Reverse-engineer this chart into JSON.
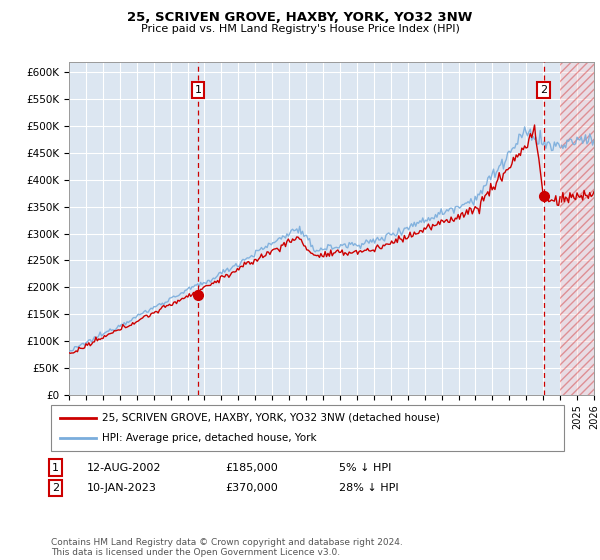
{
  "title": "25, SCRIVEN GROVE, HAXBY, YORK, YO32 3NW",
  "subtitle": "Price paid vs. HM Land Registry's House Price Index (HPI)",
  "ylabel_ticks": [
    "£0",
    "£50K",
    "£100K",
    "£150K",
    "£200K",
    "£250K",
    "£300K",
    "£350K",
    "£400K",
    "£450K",
    "£500K",
    "£550K",
    "£600K"
  ],
  "ytick_values": [
    0,
    50000,
    100000,
    150000,
    200000,
    250000,
    300000,
    350000,
    400000,
    450000,
    500000,
    550000,
    600000
  ],
  "xmin": 1995,
  "xmax": 2026,
  "ymin": 0,
  "ymax": 620000,
  "plot_bg": "#dce6f1",
  "line1_color": "#cc0000",
  "line2_color": "#7aaddc",
  "sale1_date": 2002.617,
  "sale1_price": 185000,
  "sale1_label": "1",
  "sale2_date": 2023.033,
  "sale2_price": 370000,
  "sale2_label": "2",
  "legend_line1": "25, SCRIVEN GROVE, HAXBY, YORK, YO32 3NW (detached house)",
  "legend_line2": "HPI: Average price, detached house, York",
  "table_row1_num": "1",
  "table_row1_date": "12-AUG-2002",
  "table_row1_price": "£185,000",
  "table_row1_hpi": "5% ↓ HPI",
  "table_row2_num": "2",
  "table_row2_date": "10-JAN-2023",
  "table_row2_price": "£370,000",
  "table_row2_hpi": "28% ↓ HPI",
  "footer": "Contains HM Land Registry data © Crown copyright and database right 2024.\nThis data is licensed under the Open Government Licence v3.0.",
  "current_year": 2024.0,
  "hatch_start": 2024.0
}
